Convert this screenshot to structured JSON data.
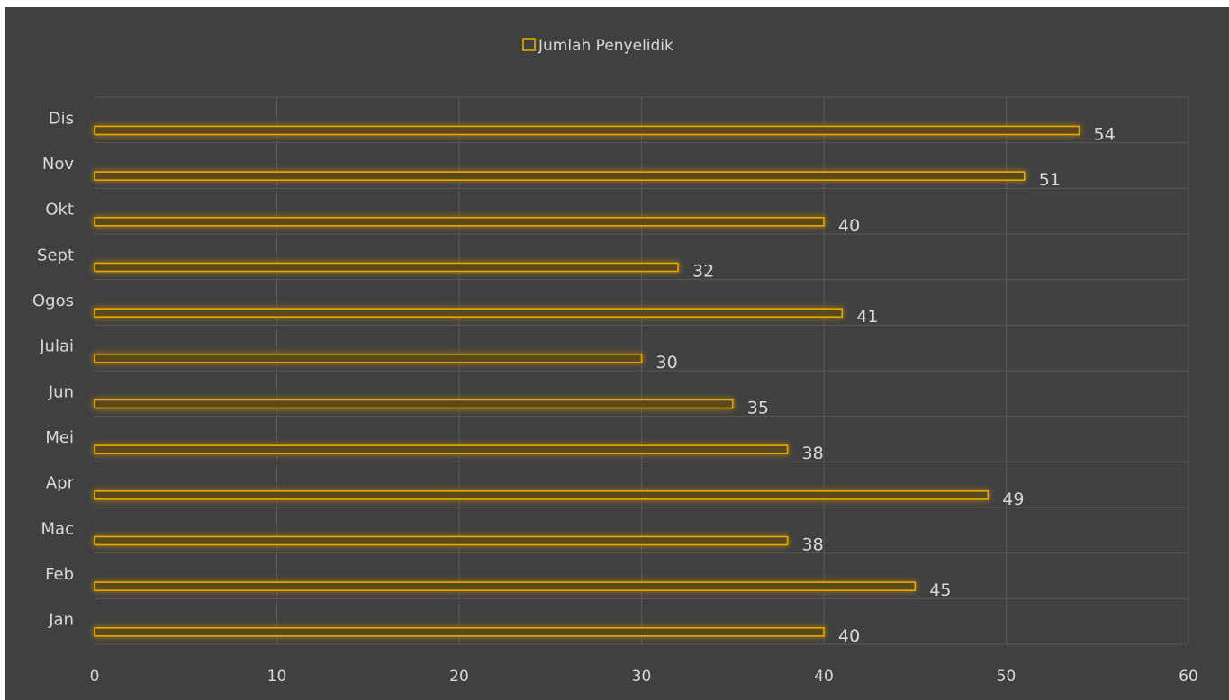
{
  "colors": {
    "background": "#404040",
    "bar_stroke": "#e6a700",
    "bar_fill": "#5a4a1f",
    "bar_glow": "#b38600",
    "text": "#d9d9d9",
    "grid": "#595959"
  },
  "chart_data": {
    "type": "bar",
    "orientation": "horizontal",
    "title": "",
    "xlabel": "",
    "ylabel": "",
    "legend": {
      "position": "top",
      "entries": [
        "Jumlah Penyelidik"
      ]
    },
    "categories": [
      "Jan",
      "Feb",
      "Mac",
      "Apr",
      "Mei",
      "Jun",
      "Julai",
      "Ogos",
      "Sept",
      "Okt",
      "Nov",
      "Dis"
    ],
    "series": [
      {
        "name": "Jumlah Penyelidik",
        "values": [
          40,
          45,
          38,
          49,
          38,
          35,
          30,
          41,
          32,
          40,
          51,
          54
        ]
      }
    ],
    "xlim": [
      0,
      60
    ],
    "xticks": [
      0,
      10,
      20,
      30,
      40,
      50,
      60
    ],
    "grid": true,
    "data_labels": true
  }
}
